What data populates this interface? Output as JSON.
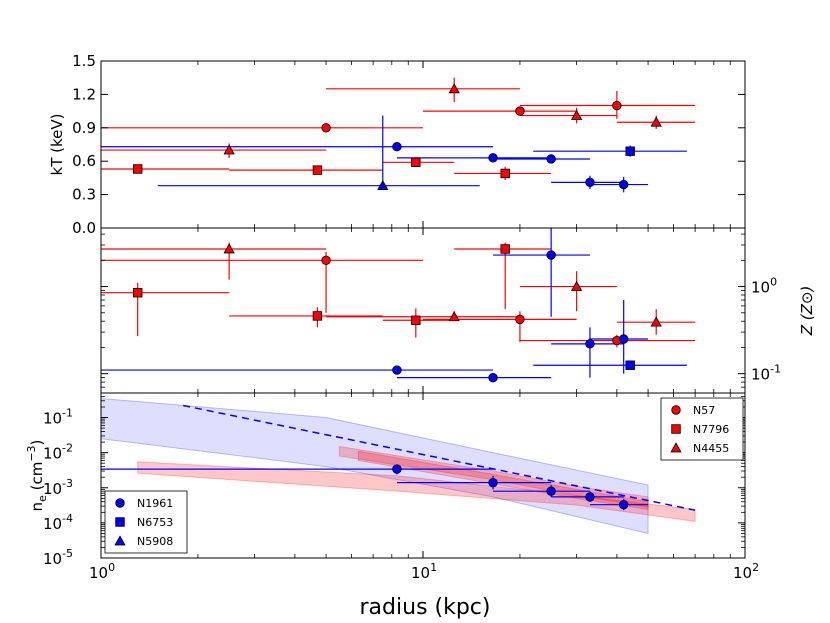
{
  "chart_data": {
    "type": "scatter",
    "xlabel": "radius (kpc)",
    "xscale": "log",
    "xlim": [
      1,
      100
    ],
    "x_tick_labels": [
      {
        "value": 1,
        "base": "10",
        "exp": "0"
      },
      {
        "value": 10,
        "base": "10",
        "exp": "1"
      },
      {
        "value": 100,
        "base": "10",
        "exp": "2"
      }
    ],
    "panels": [
      {
        "id": "kT",
        "ylabel": "kT (keV)",
        "yscale": "linear",
        "ylim": [
          0,
          1.5
        ],
        "yticks": [
          "0.0",
          "0.3",
          "0.6",
          "0.9",
          "1.2",
          "1.5"
        ],
        "series": [
          {
            "name": "N57",
            "marker": "circle",
            "color": "#ff0000",
            "points": [
              {
                "x": 5.0,
                "y": 0.9,
                "xlo": 1.0,
                "xhi": 10.0,
                "ylo": 0.88,
                "yhi": 0.92
              },
              {
                "x": 20.0,
                "y": 1.05,
                "xlo": 10.0,
                "xhi": 30.0,
                "ylo": 1.02,
                "yhi": 1.08
              },
              {
                "x": 40.0,
                "y": 1.1,
                "xlo": 20.0,
                "xhi": 70.0,
                "ylo": 0.98,
                "yhi": 1.23
              }
            ]
          },
          {
            "name": "N7796",
            "marker": "square",
            "color": "#ff0000",
            "points": [
              {
                "x": 1.3,
                "y": 0.53,
                "xlo": 1.0,
                "xhi": 2.5,
                "ylo": 0.51,
                "yhi": 0.55
              },
              {
                "x": 4.7,
                "y": 0.52,
                "xlo": 2.5,
                "xhi": 7.5,
                "ylo": 0.5,
                "yhi": 0.54
              },
              {
                "x": 9.5,
                "y": 0.59,
                "xlo": 7.5,
                "xhi": 12.5,
                "ylo": 0.56,
                "yhi": 0.62
              },
              {
                "x": 18.0,
                "y": 0.49,
                "xlo": 12.5,
                "xhi": 25.0,
                "ylo": 0.43,
                "yhi": 0.55
              }
            ]
          },
          {
            "name": "N4455",
            "marker": "triangle",
            "color": "#ff0000",
            "points": [
              {
                "x": 2.5,
                "y": 0.7,
                "xlo": 1.0,
                "xhi": 5.0,
                "ylo": 0.63,
                "yhi": 0.76
              },
              {
                "x": 12.5,
                "y": 1.25,
                "xlo": 5.0,
                "xhi": 20.0,
                "ylo": 1.13,
                "yhi": 1.35
              },
              {
                "x": 30.0,
                "y": 1.01,
                "xlo": 20.0,
                "xhi": 40.0,
                "ylo": 0.94,
                "yhi": 1.08
              },
              {
                "x": 53.0,
                "y": 0.95,
                "xlo": 40.0,
                "xhi": 70.0,
                "ylo": 0.89,
                "yhi": 1.01
              }
            ]
          },
          {
            "name": "N1961",
            "marker": "circle",
            "color": "#0000ff",
            "points": [
              {
                "x": 8.3,
                "y": 0.73,
                "xlo": 1.0,
                "xhi": 16.5,
                "ylo": 0.71,
                "yhi": 0.75
              },
              {
                "x": 16.5,
                "y": 0.63,
                "xlo": 8.3,
                "xhi": 25.0,
                "ylo": 0.61,
                "yhi": 0.65
              },
              {
                "x": 25.0,
                "y": 0.62,
                "xlo": 16.5,
                "xhi": 33.0,
                "ylo": 0.58,
                "yhi": 0.66
              },
              {
                "x": 33.0,
                "y": 0.41,
                "xlo": 25.0,
                "xhi": 42.0,
                "ylo": 0.35,
                "yhi": 0.47
              },
              {
                "x": 42.0,
                "y": 0.39,
                "xlo": 33.0,
                "xhi": 50.0,
                "ylo": 0.32,
                "yhi": 0.46
              }
            ]
          },
          {
            "name": "N6753",
            "marker": "square",
            "color": "#0000ff",
            "points": [
              {
                "x": 44.0,
                "y": 0.69,
                "xlo": 22.0,
                "xhi": 66.0,
                "ylo": 0.64,
                "yhi": 0.74
              }
            ]
          },
          {
            "name": "N5908",
            "marker": "triangle",
            "color": "#0000ff",
            "points": [
              {
                "x": 7.5,
                "y": 0.38,
                "xlo": 1.5,
                "xhi": 15.0,
                "ylo": 0.35,
                "yhi": 1.01
              }
            ]
          }
        ]
      },
      {
        "id": "Z",
        "ylabel": "Z (Z⊙)",
        "yaxis_side": "right",
        "yscale": "log",
        "ylim": [
          0.06,
          4.7
        ],
        "yticks": [
          {
            "value": 1.0,
            "base": "10",
            "exp": "0"
          },
          {
            "value": 0.1,
            "base": "10",
            "exp": "-1"
          }
        ],
        "series": [
          {
            "name": "N57",
            "marker": "circle",
            "color": "#ff0000",
            "points": [
              {
                "x": 5.0,
                "y": 2.0,
                "xlo": 1.0,
                "xhi": 10.0,
                "ylo": 0.5,
                "yhi": 2.5
              },
              {
                "x": 20.0,
                "y": 0.42,
                "xlo": 10.0,
                "xhi": 30.0,
                "ylo": 0.23,
                "yhi": 0.52
              },
              {
                "x": 40.0,
                "y": 0.24,
                "xlo": 20.0,
                "xhi": 70.0,
                "ylo": 0.2,
                "yhi": 0.28
              }
            ]
          },
          {
            "name": "N7796",
            "marker": "square",
            "color": "#ff0000",
            "points": [
              {
                "x": 1.3,
                "y": 0.85,
                "xlo": 1.0,
                "xhi": 2.5,
                "ylo": 0.27,
                "yhi": 1.1
              },
              {
                "x": 4.7,
                "y": 0.46,
                "xlo": 2.5,
                "xhi": 7.5,
                "ylo": 0.34,
                "yhi": 0.58
              },
              {
                "x": 9.5,
                "y": 0.41,
                "xlo": 7.5,
                "xhi": 12.5,
                "ylo": 0.26,
                "yhi": 0.56
              },
              {
                "x": 18.0,
                "y": 2.7,
                "xlo": 12.5,
                "xhi": 25.0,
                "ylo": 0.55,
                "yhi": 3.2
              }
            ]
          },
          {
            "name": "N4455",
            "marker": "triangle",
            "color": "#ff0000",
            "points": [
              {
                "x": 2.5,
                "y": 2.7,
                "xlo": 1.0,
                "xhi": 5.0,
                "ylo": 1.2,
                "yhi": 3.2
              },
              {
                "x": 12.5,
                "y": 0.45,
                "xlo": 5.0,
                "xhi": 20.0,
                "ylo": 0.4,
                "yhi": 0.52
              },
              {
                "x": 30.0,
                "y": 1.0,
                "xlo": 20.0,
                "xhi": 40.0,
                "ylo": 0.52,
                "yhi": 1.5
              },
              {
                "x": 53.0,
                "y": 0.39,
                "xlo": 40.0,
                "xhi": 70.0,
                "ylo": 0.28,
                "yhi": 0.55
              }
            ]
          },
          {
            "name": "N1961",
            "marker": "circle",
            "color": "#0000ff",
            "points": [
              {
                "x": 8.3,
                "y": 0.11,
                "xlo": 1.0,
                "xhi": 16.5,
                "ylo": 0.1,
                "yhi": 0.12
              },
              {
                "x": 16.5,
                "y": 0.09,
                "xlo": 8.3,
                "xhi": 25.0,
                "ylo": 0.08,
                "yhi": 0.1
              },
              {
                "x": 25.0,
                "y": 2.3,
                "xlo": 16.5,
                "xhi": 33.0,
                "ylo": 0.45,
                "yhi": 4.7
              },
              {
                "x": 33.0,
                "y": 0.22,
                "xlo": 25.0,
                "xhi": 42.0,
                "ylo": 0.09,
                "yhi": 0.34
              },
              {
                "x": 42.0,
                "y": 0.25,
                "xlo": 33.0,
                "xhi": 50.0,
                "ylo": 0.1,
                "yhi": 0.7
              }
            ]
          },
          {
            "name": "N6753",
            "marker": "square",
            "color": "#0000ff",
            "points": [
              {
                "x": 44.0,
                "y": 0.125,
                "xlo": 22.0,
                "xhi": 66.0,
                "ylo": 0.118,
                "yhi": 0.132
              }
            ]
          }
        ]
      },
      {
        "id": "ne",
        "ylabel": "n_e (cm^-3)",
        "ylabel_display": {
          "base": "n",
          "sub": "e",
          "unit": "(cm",
          "exp": "−3",
          "close": ")"
        },
        "yscale": "log",
        "ylim": [
          1e-05,
          0.5
        ],
        "yticks": [
          {
            "value": 0.1,
            "base": "10",
            "exp": "-1"
          },
          {
            "value": 0.01,
            "base": "10",
            "exp": "-2"
          },
          {
            "value": 0.001,
            "base": "10",
            "exp": "-3"
          },
          {
            "value": 0.0001,
            "base": "10",
            "exp": "-4"
          },
          {
            "value": 1e-05,
            "base": "10",
            "exp": "-5"
          }
        ],
        "bands": [
          {
            "name": "N1961 profile",
            "color": "#0000ff",
            "opacity": 0.13,
            "upper": [
              [
                1.0,
                0.35
              ],
              [
                5,
                0.1
              ],
              [
                16.5,
                0.01
              ],
              [
                50,
                0.0012
              ]
            ],
            "lower": [
              [
                1.0,
                0.025
              ],
              [
                5,
                0.004
              ],
              [
                16.5,
                0.00055
              ],
              [
                50,
                5e-05
              ]
            ]
          },
          {
            "name": "N7796 profile",
            "color": "#ff0000",
            "opacity": 0.22,
            "upper": [
              [
                1.3,
                0.0055
              ],
              [
                8.3,
                0.0022
              ],
              [
                30,
                0.0006
              ],
              [
                70,
                0.00024
              ]
            ],
            "lower": [
              [
                1.3,
                0.0026
              ],
              [
                8.3,
                0.0008
              ],
              [
                30,
                0.00032
              ],
              [
                70,
                0.00011
              ]
            ]
          },
          {
            "name": "N57 profile",
            "color": "#ff0000",
            "opacity": 0.22,
            "upper": [
              [
                5.5,
                0.015
              ],
              [
                16.5,
                0.003
              ],
              [
                30,
                0.0011
              ],
              [
                50,
                0.00055
              ]
            ],
            "lower": [
              [
                5.5,
                0.008
              ],
              [
                16.5,
                0.0017
              ],
              [
                30,
                0.0006
              ],
              [
                50,
                0.00028
              ]
            ]
          },
          {
            "name": "N4455 profile",
            "color": "#ff0000",
            "opacity": 0.22,
            "upper": [
              [
                6.3,
                0.011
              ],
              [
                16.5,
                0.0024
              ],
              [
                30,
                0.0009
              ],
              [
                50,
                0.0004
              ]
            ],
            "lower": [
              [
                6.3,
                0.006
              ],
              [
                16.5,
                0.0013
              ],
              [
                30,
                0.0005
              ],
              [
                50,
                0.00024
              ]
            ]
          }
        ],
        "dashed_line": {
          "color": "#0000ff",
          "points": [
            [
              1.8,
              0.22
            ],
            [
              70,
              0.00023
            ]
          ]
        },
        "series": [
          {
            "name": "N1961",
            "marker": "circle",
            "color": "#0000ff",
            "points": [
              {
                "x": 8.3,
                "y": 0.0034,
                "xlo": 1.0,
                "xhi": 16.5,
                "ylo": 0.0024,
                "yhi": 0.0046
              },
              {
                "x": 16.5,
                "y": 0.0014,
                "xlo": 8.3,
                "xhi": 25.0,
                "ylo": 0.0009,
                "yhi": 0.0022
              },
              {
                "x": 25.0,
                "y": 0.0008,
                "xlo": 16.5,
                "xhi": 33.0,
                "ylo": 0.00055,
                "yhi": 0.0012
              },
              {
                "x": 33.0,
                "y": 0.00055,
                "xlo": 25.0,
                "xhi": 42.0,
                "ylo": 0.0004,
                "yhi": 0.0008
              },
              {
                "x": 42.0,
                "y": 0.00033,
                "xlo": 33.0,
                "xhi": 50.0,
                "ylo": 0.00023,
                "yhi": 0.00048
              }
            ]
          }
        ]
      }
    ],
    "legends": [
      {
        "panel": "ne",
        "location": "top-right",
        "entries": [
          {
            "label": "N57",
            "marker": "circle",
            "color": "#ff0000"
          },
          {
            "label": "N7796",
            "marker": "square",
            "color": "#ff0000"
          },
          {
            "label": "N4455",
            "marker": "triangle",
            "color": "#ff0000"
          }
        ]
      },
      {
        "panel": "ne",
        "location": "bottom-left",
        "entries": [
          {
            "label": "N1961",
            "marker": "circle",
            "color": "#0000ff"
          },
          {
            "label": "N6753",
            "marker": "square",
            "color": "#0000ff"
          },
          {
            "label": "N5908",
            "marker": "triangle",
            "color": "#0000ff"
          }
        ]
      }
    ]
  }
}
